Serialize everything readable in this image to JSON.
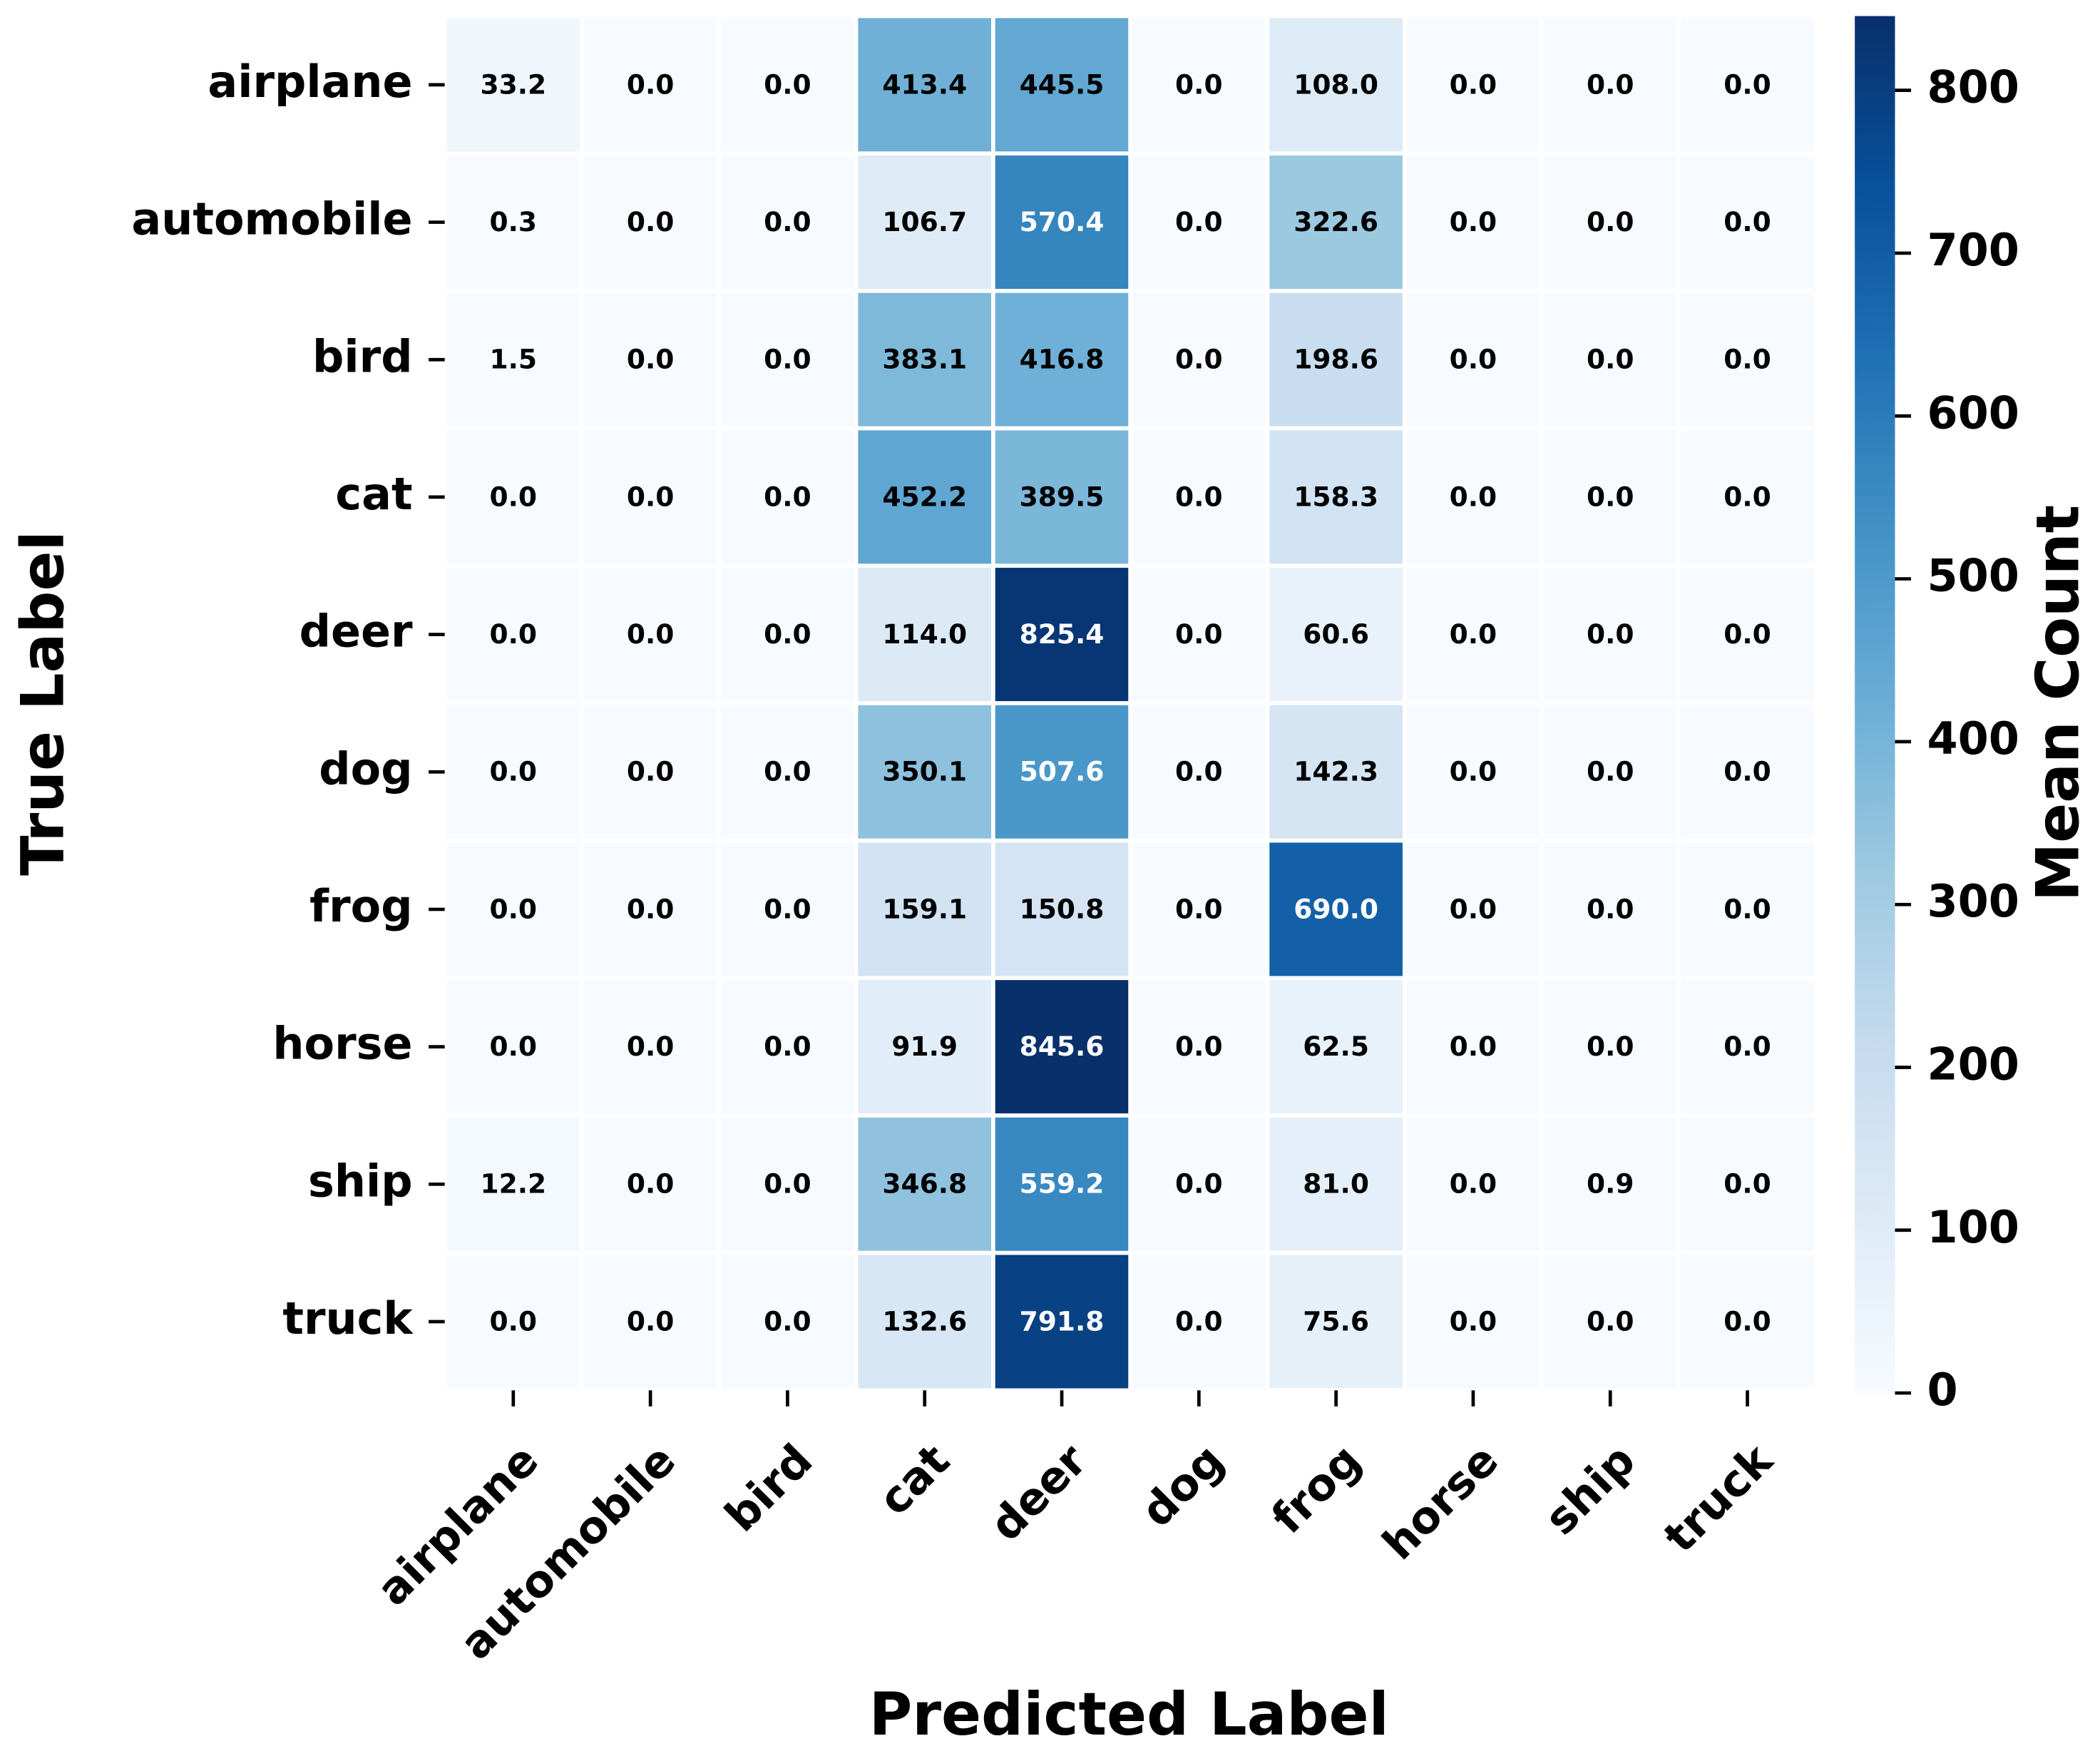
{
  "chart_data": {
    "type": "heatmap",
    "x_label": "Predicted Label",
    "y_label": "True Label",
    "colorbar_label": "Mean Count",
    "colormap": "Blues",
    "x_categories": [
      "airplane",
      "automobile",
      "bird",
      "cat",
      "deer",
      "dog",
      "frog",
      "horse",
      "ship",
      "truck"
    ],
    "y_categories": [
      "airplane",
      "automobile",
      "bird",
      "cat",
      "deer",
      "dog",
      "frog",
      "horse",
      "ship",
      "truck"
    ],
    "values": [
      [
        33.2,
        0,
        0,
        413.4,
        445.5,
        0,
        108,
        0,
        0,
        0
      ],
      [
        0.3,
        0,
        0,
        106.7,
        570.4,
        0,
        322.6,
        0,
        0,
        0
      ],
      [
        1.5,
        0,
        0,
        383.1,
        416.8,
        0,
        198.6,
        0,
        0,
        0
      ],
      [
        0,
        0,
        0,
        452.2,
        389.5,
        0,
        158.3,
        0,
        0,
        0
      ],
      [
        0,
        0,
        0,
        114,
        825.4,
        0,
        60.6,
        0,
        0,
        0
      ],
      [
        0,
        0,
        0,
        350.1,
        507.6,
        0,
        142.3,
        0,
        0,
        0
      ],
      [
        0,
        0,
        0,
        159.1,
        150.8,
        0,
        690,
        0,
        0,
        0
      ],
      [
        0,
        0,
        0,
        91.9,
        845.6,
        0,
        62.5,
        0,
        0,
        0
      ],
      [
        12.2,
        0,
        0,
        346.8,
        559.2,
        0,
        81,
        0,
        0.9,
        0
      ],
      [
        0,
        0,
        0,
        132.6,
        791.8,
        0,
        75.6,
        0,
        0,
        0
      ]
    ],
    "value_labels": [
      [
        "33.2",
        "0.0",
        "0.0",
        "413.4",
        "445.5",
        "0.0",
        "108.0",
        "0.0",
        "0.0",
        "0.0"
      ],
      [
        "0.3",
        "0.0",
        "0.0",
        "106.7",
        "570.4",
        "0.0",
        "322.6",
        "0.0",
        "0.0",
        "0.0"
      ],
      [
        "1.5",
        "0.0",
        "0.0",
        "383.1",
        "416.8",
        "0.0",
        "198.6",
        "0.0",
        "0.0",
        "0.0"
      ],
      [
        "0.0",
        "0.0",
        "0.0",
        "452.2",
        "389.5",
        "0.0",
        "158.3",
        "0.0",
        "0.0",
        "0.0"
      ],
      [
        "0.0",
        "0.0",
        "0.0",
        "114.0",
        "825.4",
        "0.0",
        "60.6",
        "0.0",
        "0.0",
        "0.0"
      ],
      [
        "0.0",
        "0.0",
        "0.0",
        "350.1",
        "507.6",
        "0.0",
        "142.3",
        "0.0",
        "0.0",
        "0.0"
      ],
      [
        "0.0",
        "0.0",
        "0.0",
        "159.1",
        "150.8",
        "0.0",
        "690.0",
        "0.0",
        "0.0",
        "0.0"
      ],
      [
        "0.0",
        "0.0",
        "0.0",
        "91.9",
        "845.6",
        "0.0",
        "62.5",
        "0.0",
        "0.0",
        "0.0"
      ],
      [
        "12.2",
        "0.0",
        "0.0",
        "346.8",
        "559.2",
        "0.0",
        "81.0",
        "0.0",
        "0.9",
        "0.0"
      ],
      [
        "0.0",
        "0.0",
        "0.0",
        "132.6",
        "791.8",
        "0.0",
        "75.6",
        "0.0",
        "0.0",
        "0.0"
      ]
    ],
    "clim": [
      0,
      845.6
    ],
    "cticks": [
      0,
      100,
      200,
      300,
      400,
      500,
      600,
      700,
      800
    ]
  }
}
